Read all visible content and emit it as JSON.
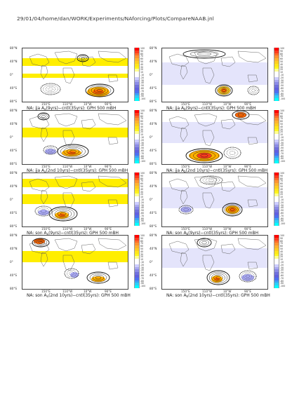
{
  "page_title": "29/01/04/home/dan/WORK/Experiments/NAforcing/Plots/CompareNAAB.jnl",
  "axes": {
    "lat_ticks": [
      "80°N",
      "40°N",
      "0°",
      "40°S",
      "80°S"
    ],
    "lon_ticks": [
      "150°E",
      "110°W",
      "10°W",
      "90°E"
    ]
  },
  "colorbar": {
    "levels": [
      "100",
      "90",
      "80",
      "70",
      "60",
      "50",
      "40",
      "30",
      "20",
      "10",
      "-10",
      "-20",
      "-30",
      "-40",
      "-50",
      "-60",
      "-70",
      "-80",
      "-90",
      "-100"
    ],
    "colors": [
      "#ff0000",
      "#ff3c1e",
      "#ff6a2a",
      "#ff9232",
      "#ffb230",
      "#ffcc22",
      "#ffe51a",
      "#fff51c",
      "#ffff8c",
      "#ffffff",
      "#ffffff",
      "#ccccff",
      "#aaaaf0",
      "#8c8ce6",
      "#7070dc",
      "#6060e0",
      "#4c70f0",
      "#3ca0f5",
      "#2ccdf8",
      "#00ffff"
    ]
  },
  "colors": {
    "positive_fill": "#ffee00",
    "negative_fill": "#a8a8f2",
    "strong_positive": "#ff6600",
    "contour": "#111111"
  },
  "chart_data": [
    {
      "type": "heatmap",
      "title": "NA: jja A_a(9yrs)-cntl(35yrs): GPH 500 mBH",
      "caption_pre": "NA: jja A",
      "caption_sub": "a",
      "caption_post": "(9yrs)−cntl(35yrs): GPH 500 mBH",
      "variable": "GPH 500 mb",
      "season": "jja",
      "levels": [
        -100,
        -90,
        -80,
        -70,
        -60,
        -50,
        -40,
        -30,
        -20,
        -10,
        10,
        20,
        30,
        40,
        50,
        60,
        70,
        80,
        90,
        100
      ]
    },
    {
      "type": "heatmap",
      "title": "NA: jja A_b(9yrs)-cntl(35yrs): GPH 500 mBH",
      "caption_pre": "NA: jja A",
      "caption_sub": "b",
      "caption_post": "(9yrs)−cntl(35yrs): GPH 500 mBH",
      "variable": "GPH 500 mb",
      "season": "jja",
      "levels": [
        -100,
        -90,
        -80,
        -70,
        -60,
        -50,
        -40,
        -30,
        -20,
        -10,
        10,
        20,
        30,
        40,
        50,
        60,
        70,
        80,
        90,
        100
      ]
    },
    {
      "type": "heatmap",
      "title": "NA: jja A_a(2nd 10yrs)-cntl(35yrs): GPH 500 mBH",
      "caption_pre": "NA: jja A",
      "caption_sub": "a",
      "caption_post": "(2nd 10yrs)−cntl(35yrs): GPH 500 mBH",
      "variable": "GPH 500 mb",
      "season": "jja",
      "levels": [
        -100,
        -90,
        -80,
        -70,
        -60,
        -50,
        -40,
        -30,
        -20,
        -10,
        10,
        20,
        30,
        40,
        50,
        60,
        70,
        80,
        90,
        100
      ]
    },
    {
      "type": "heatmap",
      "title": "NA: jja A_b(2nd 10yrs)-cntl(35yrs): GPH 500 mBH",
      "caption_pre": "NA: jja A",
      "caption_sub": "b",
      "caption_post": "(2nd 10yrs)−cntl(35yrs): GPH 500 mBH",
      "variable": "GPH 500 mb",
      "season": "jja",
      "levels": [
        -100,
        -90,
        -80,
        -70,
        -60,
        -50,
        -40,
        -30,
        -20,
        -10,
        10,
        20,
        30,
        40,
        50,
        60,
        70,
        80,
        90,
        100
      ]
    },
    {
      "type": "heatmap",
      "title": "NA: son A_a(9yrs)-cntl(35yrs): GPH 500 mBH",
      "caption_pre": "NA: son A",
      "caption_sub": "a",
      "caption_post": "(9yrs)−cntl(35yrs): GPH 500 mBH",
      "variable": "GPH 500 mb",
      "season": "son",
      "levels": [
        -100,
        -90,
        -80,
        -70,
        -60,
        -50,
        -40,
        -30,
        -20,
        -10,
        10,
        20,
        30,
        40,
        50,
        60,
        70,
        80,
        90,
        100
      ]
    },
    {
      "type": "heatmap",
      "title": "NA: son A_b(9yrs)-cntl(35yrs): GPH 500 mBH",
      "caption_pre": "NA: son A",
      "caption_sub": "b",
      "caption_post": "(9yrs)−cntl(35yrs): GPH 500 mBH",
      "variable": "GPH 500 mb",
      "season": "son",
      "levels": [
        -100,
        -90,
        -80,
        -70,
        -60,
        -50,
        -40,
        -30,
        -20,
        -10,
        10,
        20,
        30,
        40,
        50,
        60,
        70,
        80,
        90,
        100
      ]
    },
    {
      "type": "heatmap",
      "title": "NA: son A_a(2nd 10yrs)-cntl(35yrs): GPH 500 mBH",
      "caption_pre": "NA: son A",
      "caption_sub": "a",
      "caption_post": "(2nd 10yrs)−cntl(35yrs): GPH 500 mBH",
      "variable": "GPH 500 mb",
      "season": "son",
      "levels": [
        -100,
        -90,
        -80,
        -70,
        -60,
        -50,
        -40,
        -30,
        -20,
        -10,
        10,
        20,
        30,
        40,
        50,
        60,
        70,
        80,
        90,
        100
      ]
    },
    {
      "type": "heatmap",
      "title": "NA: son A_b(2nd 10yrs)-cntl(35yrs): GPH 500 mBH",
      "caption_pre": "NA: son A",
      "caption_sub": "b",
      "caption_post": "(2nd 10yrs)−cntl(35yrs): GPH 500 mBH",
      "variable": "GPH 500 mb",
      "season": "son",
      "levels": [
        -100,
        -90,
        -80,
        -70,
        -60,
        -50,
        -40,
        -30,
        -20,
        -10,
        10,
        20,
        30,
        40,
        50,
        60,
        70,
        80,
        90,
        100
      ]
    }
  ]
}
